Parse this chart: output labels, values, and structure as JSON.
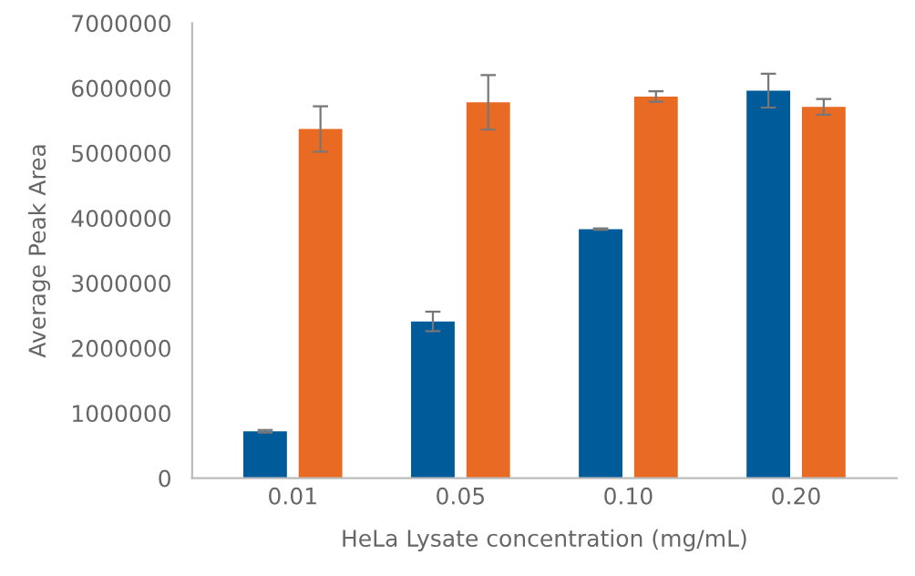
{
  "chart_data": {
    "type": "bar",
    "xlabel": "HeLa Lysate concentration (mg/mL)",
    "ylabel": "Average Peak Area",
    "categories": [
      "0.01",
      "0.05",
      "0.10",
      "0.20"
    ],
    "series": [
      {
        "color": "#005b9a",
        "values": [
          720000,
          2410000,
          3830000,
          5960000
        ],
        "errors": [
          20000,
          150000,
          10000,
          260000
        ]
      },
      {
        "color": "#e96a22",
        "values": [
          5370000,
          5780000,
          5870000,
          5710000
        ],
        "errors": [
          350000,
          420000,
          80000,
          120000
        ]
      }
    ],
    "ylim": [
      0,
      7000000
    ],
    "yticks": [
      0,
      1000000,
      2000000,
      3000000,
      4000000,
      5000000,
      6000000,
      7000000
    ],
    "grid": false,
    "legend": false
  }
}
